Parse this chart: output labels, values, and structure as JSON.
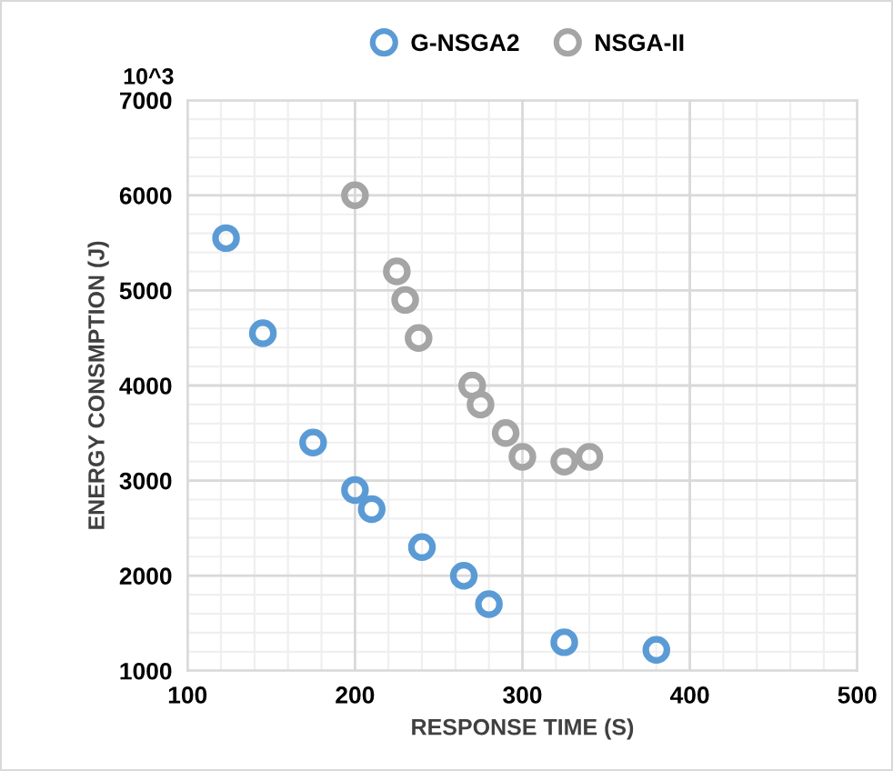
{
  "chart_data": {
    "type": "scatter",
    "xlabel": "RESPONSE TIME (S)",
    "ylabel": "ENERGY CONSMPTION (J)",
    "annotations": [
      "10^3"
    ],
    "series": [
      {
        "name": "G-NSGA2",
        "color": "#5b9bd5",
        "x": [
          123,
          145,
          175,
          200,
          210,
          240,
          265,
          280,
          325,
          380
        ],
        "values": [
          5550,
          4550,
          3400,
          2900,
          2700,
          2300,
          2000,
          1700,
          1300,
          1220
        ]
      },
      {
        "name": "NSGA-II",
        "color": "#a5a5a5",
        "x": [
          200,
          225,
          230,
          238,
          270,
          275,
          290,
          300,
          325,
          340
        ],
        "values": [
          6000,
          5200,
          4900,
          4500,
          4000,
          3800,
          3500,
          3250,
          3200,
          3250
        ]
      }
    ],
    "xlim": [
      100,
      500
    ],
    "xticks": [
      100,
      200,
      300,
      400,
      500
    ],
    "ylim": [
      1000,
      7000
    ],
    "yticks": [
      1000,
      2000,
      3000,
      4000,
      5000,
      6000,
      7000
    ],
    "grid": true,
    "legend": "top",
    "marker": "circle"
  }
}
